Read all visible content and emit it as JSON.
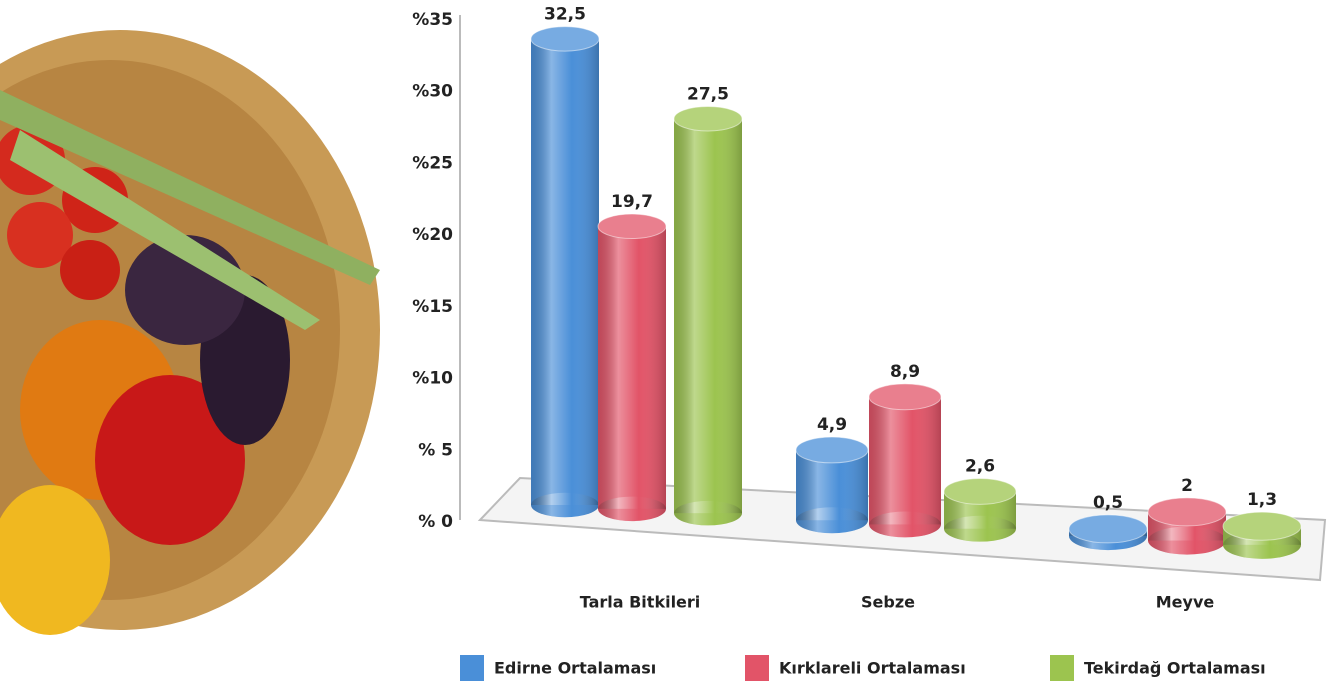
{
  "chart_data": {
    "type": "bar",
    "categories": [
      "Tarla Bitkileri",
      "Sebze",
      "Meyve"
    ],
    "series": [
      {
        "name": "Edirne Ortalaması",
        "color": "#4a8fd8",
        "values": [
          32.5,
          4.9,
          0.5
        ],
        "value_labels": [
          "32,5",
          "4,9",
          "0,5"
        ]
      },
      {
        "name": "Kırklareli Ortalaması",
        "color": "#e25468",
        "values": [
          19.7,
          8.9,
          2
        ],
        "value_labels": [
          "19,7",
          "8,9",
          "2"
        ]
      },
      {
        "name": "Tekirdağ Ortalaması",
        "color": "#9cc44f",
        "values": [
          27.5,
          2.6,
          1.3
        ],
        "value_labels": [
          "27,5",
          "2,6",
          "1,3"
        ]
      }
    ],
    "ylim": [
      0,
      35
    ],
    "yticks": [
      {
        "value": 0,
        "label": "% 0"
      },
      {
        "value": 5,
        "label": "% 5"
      },
      {
        "value": 10,
        "label": "%10"
      },
      {
        "value": 15,
        "label": "%15"
      },
      {
        "value": 20,
        "label": "%20"
      },
      {
        "value": 25,
        "label": "%25"
      },
      {
        "value": 30,
        "label": "%30"
      },
      {
        "value": 35,
        "label": "%35"
      }
    ],
    "legend": "bottom"
  }
}
